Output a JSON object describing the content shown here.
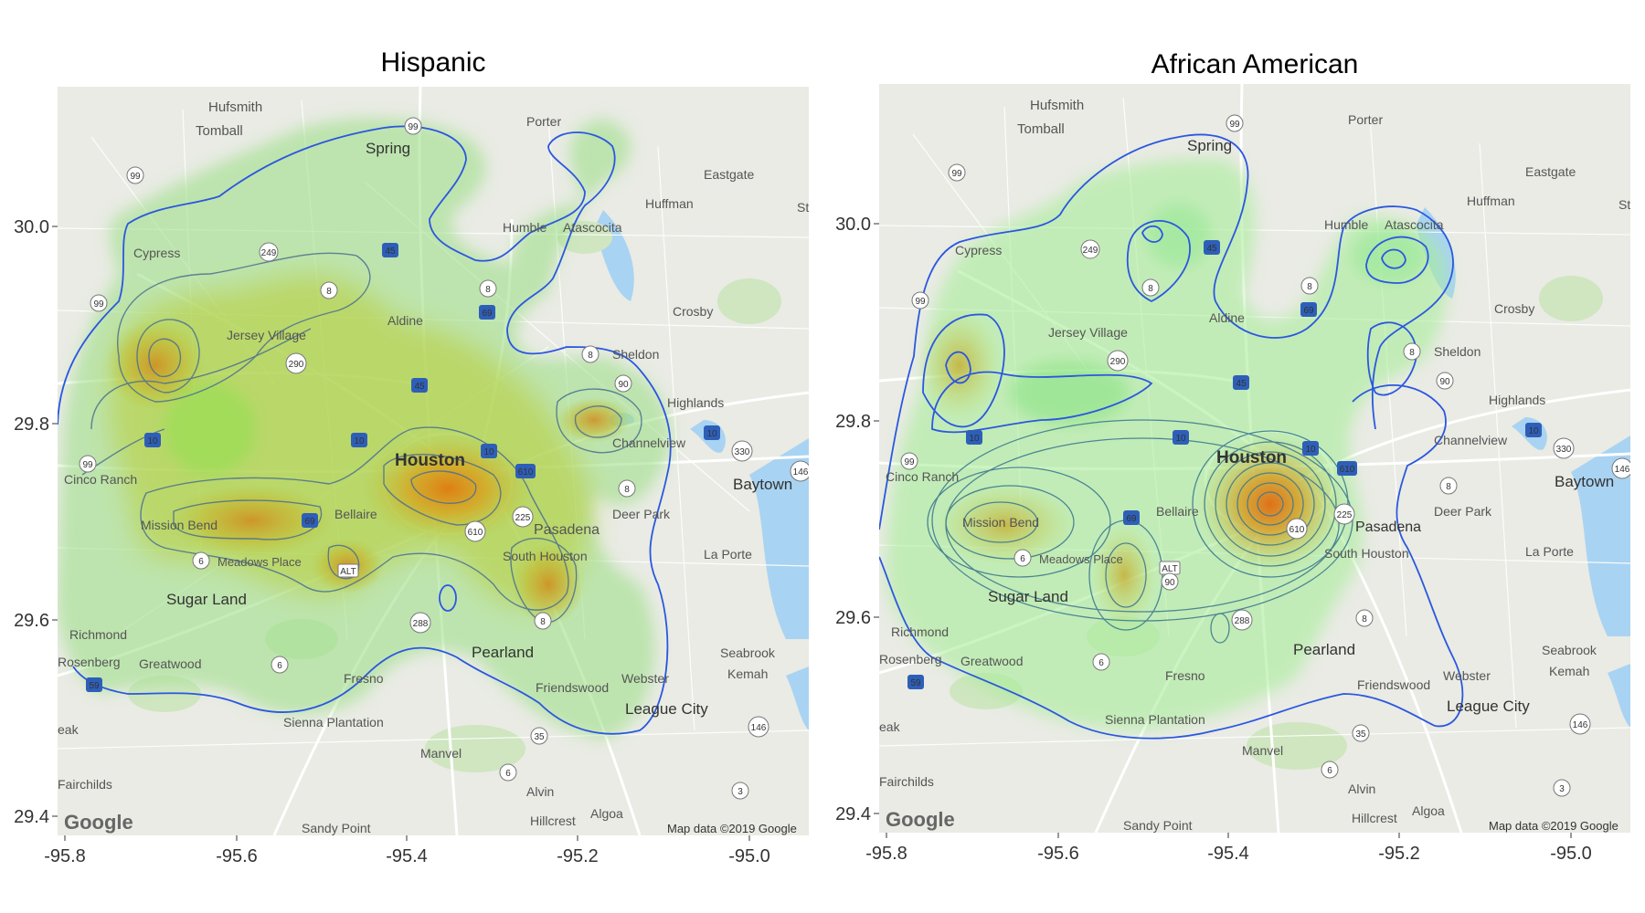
{
  "panels": [
    {
      "id": "hispanic",
      "title": "Hispanic",
      "y_ticks": [
        "30.0",
        "29.8",
        "29.6",
        "29.4"
      ],
      "x_ticks": [
        "-95.8",
        "-95.6",
        "-95.4",
        "-95.2",
        "-95.0"
      ],
      "attribution": "Map data ©2019 Google",
      "logo": "Google",
      "places": [
        "Hufsmith",
        "Tomball",
        "Porter",
        "Spring",
        "Eastgate",
        "Huffman",
        "St",
        "Cypress",
        "Humble",
        "Atascocita",
        "Crosby",
        "Jersey Village",
        "Aldine",
        "Sheldon",
        "Highlands",
        "Channelview",
        "Houston",
        "Cinco Ranch",
        "Baytown",
        "Bellaire",
        "Deer Park",
        "Mission Bend",
        "Pasadena",
        "La Porte",
        "Meadows Place",
        "South Houston",
        "Sugar Land",
        "Richmond",
        "Pearland",
        "Seabrook",
        "Kemah",
        "Greatwood",
        "Fresno",
        "Webster",
        "Friendswood",
        "League City",
        "Sienna Plantation",
        "Manvel",
        "Fairchilds",
        "Alvin",
        "Hillcrest",
        "Algoa",
        "Sandy Point",
        "Rosenberg",
        "eak"
      ],
      "hotspots": [
        {
          "lon": -95.7,
          "lat": 29.85,
          "level": 0.75
        },
        {
          "lon": -95.32,
          "lat": 29.715,
          "level": 1.0
        },
        {
          "lon": -95.6,
          "lat": 29.69,
          "level": 0.6
        },
        {
          "lon": -95.475,
          "lat": 29.78,
          "level": 0.5
        },
        {
          "lon": -95.17,
          "lat": 29.8,
          "level": 0.4
        },
        {
          "lon": -95.25,
          "lat": 29.65,
          "level": 0.45
        }
      ]
    },
    {
      "id": "african-american",
      "title": "African American",
      "y_ticks": [
        "30.0",
        "29.8",
        "29.6",
        "29.4"
      ],
      "x_ticks": [
        "-95.8",
        "-95.6",
        "-95.4",
        "-95.2",
        "-95.0"
      ],
      "attribution": "Map data ©2019 Google",
      "logo": "Google",
      "places": [
        "Hufsmith",
        "Tomball",
        "Porter",
        "Spring",
        "Eastgate",
        "Huffman",
        "St",
        "Cypress",
        "Humble",
        "Atascocita",
        "Crosby",
        "Jersey Village",
        "Aldine",
        "Sheldon",
        "Highlands",
        "Channelview",
        "Houston",
        "Cinco Ranch",
        "Baytown",
        "Bellaire",
        "Deer Park",
        "Mission Bend",
        "Pasadena",
        "La Porte",
        "Meadows Place",
        "South Houston",
        "Sugar Land",
        "Richmond",
        "Pearland",
        "Seabrook",
        "Kemah",
        "Greatwood",
        "Fresno",
        "Webster",
        "Friendswood",
        "League City",
        "Sienna Plantation",
        "Manvel",
        "Fairchilds",
        "Alvin",
        "Hillcrest",
        "Algoa",
        "Sandy Point",
        "Rosenberg",
        "eak"
      ],
      "hotspots": [
        {
          "lon": -95.36,
          "lat": 29.72,
          "level": 1.0
        },
        {
          "lon": -95.65,
          "lat": 29.69,
          "level": 0.45
        },
        {
          "lon": -95.53,
          "lat": 29.64,
          "level": 0.35
        },
        {
          "lon": -95.71,
          "lat": 29.85,
          "level": 0.25
        },
        {
          "lon": -95.43,
          "lat": 29.98,
          "level": 0.15
        },
        {
          "lon": -95.2,
          "lat": 29.95,
          "level": 0.15
        }
      ]
    }
  ]
}
